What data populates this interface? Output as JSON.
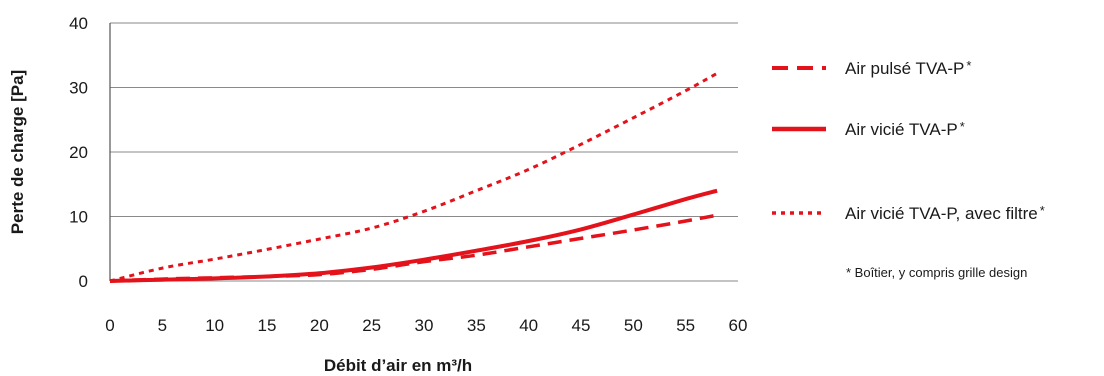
{
  "chart_data": {
    "type": "line",
    "title": "",
    "xlabel": "Débit d’air en m³/h",
    "ylabel": "Perte de charge [Pa]",
    "xlim": [
      0,
      60
    ],
    "ylim": [
      0,
      40
    ],
    "xticks": [
      "0",
      "5",
      "10",
      "15",
      "20",
      "25",
      "30",
      "35",
      "40",
      "45",
      "50",
      "55",
      "60"
    ],
    "yticks": [
      "0",
      "10",
      "20",
      "30",
      "40"
    ],
    "grid": "horizontal",
    "legend_position": "right",
    "series": [
      {
        "name": "Air pulsé TVA-P",
        "style": "dashed",
        "color": "#e3121b",
        "x": [
          0,
          5,
          10,
          15,
          20,
          25,
          30,
          35,
          40,
          45,
          50,
          55,
          58
        ],
        "y": [
          0,
          0.3,
          0.5,
          0.7,
          1.0,
          1.8,
          3.0,
          4.0,
          5.3,
          6.6,
          7.9,
          9.3,
          10.2
        ]
      },
      {
        "name": "Air vicié TVA-P",
        "style": "solid",
        "color": "#e3121b",
        "x": [
          0,
          5,
          10,
          15,
          20,
          25,
          30,
          35,
          40,
          45,
          50,
          55,
          58
        ],
        "y": [
          0,
          0.2,
          0.4,
          0.7,
          1.2,
          2.1,
          3.3,
          4.7,
          6.2,
          8.0,
          10.3,
          12.7,
          14.0
        ]
      },
      {
        "name": "Air vicié TVA-P, avec filtre",
        "style": "dotted",
        "color": "#e3121b",
        "x": [
          0,
          5,
          10,
          15,
          20,
          25,
          30,
          35,
          40,
          45,
          50,
          55,
          58
        ],
        "y": [
          0,
          2.0,
          3.4,
          4.9,
          6.5,
          8.2,
          10.8,
          14.0,
          17.3,
          21.2,
          25.3,
          29.5,
          32.2
        ]
      }
    ],
    "legend_marker": "*",
    "footnote": "* Boîtier, y compris grille design"
  }
}
